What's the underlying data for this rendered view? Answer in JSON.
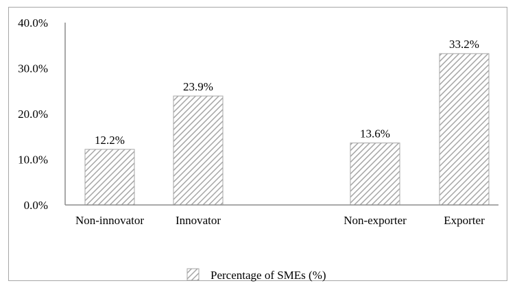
{
  "chart_data": {
    "type": "bar",
    "categories": [
      "Non-innovator",
      "Innovator",
      "Non-exporter",
      "Exporter"
    ],
    "series": [
      {
        "name": "Percentage of SMEs (%)",
        "values": [
          12.2,
          23.9,
          13.6,
          33.2
        ]
      }
    ],
    "data_labels": [
      "12.2%",
      "23.9%",
      "13.6%",
      "33.2%"
    ],
    "y_ticks": [
      "0.0%",
      "10.0%",
      "20.0%",
      "30.0%",
      "40.0%"
    ],
    "ylim": [
      0,
      40
    ],
    "title": "",
    "xlabel": "",
    "ylabel": "",
    "grid": false,
    "legend_position": "bottom",
    "bar_pattern": "diagonal-hatch",
    "hatch_color": "#a6a6a6",
    "axis_color": "#8c8c8c"
  }
}
